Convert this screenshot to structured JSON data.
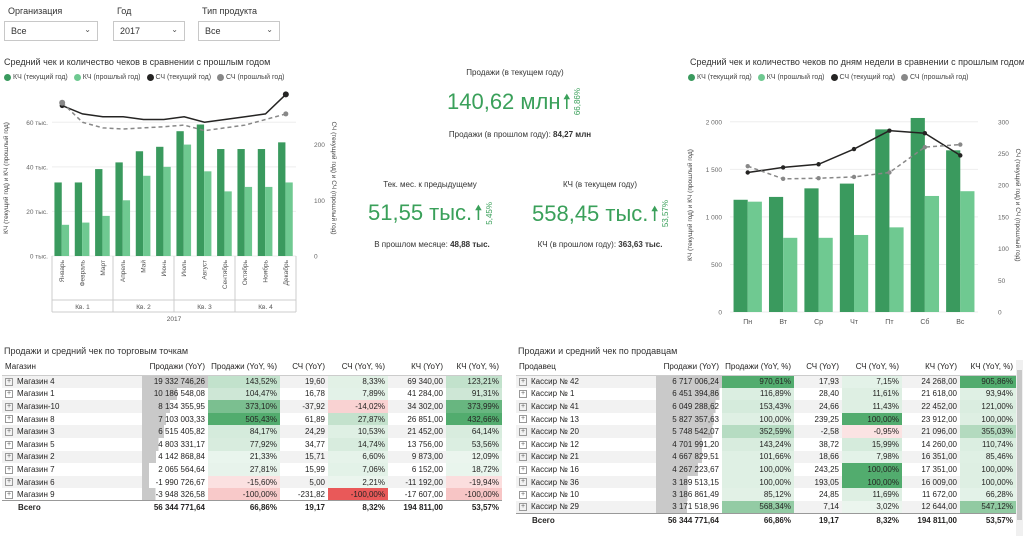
{
  "filters": [
    {
      "label": "Организация",
      "value": "Все"
    },
    {
      "label": "Год",
      "value": "2017"
    },
    {
      "label": "Тип продукта",
      "value": "Все"
    }
  ],
  "colors": {
    "kch_cur": "#3a9a5e",
    "kch_prev": "#6fc991",
    "sch_cur": "#252423",
    "sch_prev": "#888888",
    "accent": "#3aa05a"
  },
  "chart_left": {
    "title": "Средний чек и количество чеков в сравнении с прошлым годом",
    "legend": [
      "КЧ (текущий год)",
      "КЧ (прошлый год)",
      "СЧ (текущий год)",
      "СЧ (прошлый год)"
    ],
    "ylabel_left": "КЧ (текущий год) и КЧ (прошлый год)",
    "ylabel_right": "СЧ (текущий год) и СЧ (прошлый год)",
    "yticks_left": [
      "0 тыс.",
      "20 тыс.",
      "40 тыс.",
      "60 тыс."
    ],
    "yticks_right": [
      "0",
      "100",
      "200"
    ],
    "quarters": [
      "Кв. 1",
      "Кв. 2",
      "Кв. 3",
      "Кв. 4"
    ],
    "year": "2017"
  },
  "chart_right": {
    "title": "Средний чек и количество чеков по дням недели в сравнении с прошлым годом",
    "legend": [
      "КЧ (текущий год)",
      "КЧ (прошлый год)",
      "СЧ (текущий год)",
      "СЧ (прошлый год)"
    ],
    "ylabel_left": "КЧ (текущий год) и КЧ (прошлый год)",
    "ylabel_right": "СЧ (текущий год) и СЧ (прошлый год)",
    "yticks_left": [
      "0",
      "500",
      "1 000",
      "1 500",
      "2 000"
    ],
    "yticks_right": [
      "0",
      "50",
      "100",
      "150",
      "200",
      "250",
      "300"
    ]
  },
  "chart_data": [
    {
      "type": "bar",
      "title": "Средний чек и количество чеков в сравнении с прошлым годом",
      "categories": [
        "Январь",
        "Февраль",
        "Март",
        "Апрель",
        "Май",
        "Июнь",
        "Июль",
        "Август",
        "Сентябрь",
        "Октябрь",
        "Ноябрь",
        "Декабрь"
      ],
      "ylim": [
        0,
        70000
      ],
      "y2lim": [
        0,
        280
      ],
      "series": [
        {
          "name": "КЧ (текущий год)",
          "kind": "bar",
          "values": [
            33000,
            33000,
            39000,
            42000,
            47000,
            49000,
            56000,
            59000,
            48000,
            48000,
            48000,
            51000
          ]
        },
        {
          "name": "КЧ (прошлый год)",
          "kind": "bar",
          "values": [
            14000,
            15000,
            18000,
            25000,
            36000,
            40000,
            50000,
            38000,
            29000,
            31000,
            31000,
            33000
          ]
        },
        {
          "name": "СЧ (текущий год)",
          "kind": "line",
          "values": [
            270,
            255,
            250,
            250,
            245,
            245,
            250,
            240,
            245,
            250,
            255,
            290
          ]
        },
        {
          "name": "СЧ (прошлый год)",
          "kind": "line",
          "values": [
            275,
            240,
            230,
            228,
            230,
            232,
            235,
            225,
            230,
            235,
            245,
            255
          ]
        }
      ]
    },
    {
      "type": "bar",
      "title": "Средний чек и количество чеков по дням недели в сравнении с прошлым годом",
      "categories": [
        "Пн",
        "Вт",
        "Ср",
        "Чт",
        "Пт",
        "Сб",
        "Вс"
      ],
      "ylim": [
        0,
        2250
      ],
      "y2lim": [
        0,
        337.5
      ],
      "series": [
        {
          "name": "КЧ (текущий год)",
          "kind": "bar",
          "values": [
            1180,
            1210,
            1300,
            1350,
            1920,
            2040,
            1700
          ]
        },
        {
          "name": "КЧ (прошлый год)",
          "kind": "bar",
          "values": [
            1160,
            780,
            780,
            810,
            890,
            1220,
            1270
          ]
        },
        {
          "name": "СЧ (текущий год)",
          "kind": "line",
          "values": [
            220,
            228,
            233,
            257,
            286,
            282,
            247
          ]
        },
        {
          "name": "СЧ (прошлый год)",
          "kind": "line",
          "values": [
            230,
            210,
            211,
            213,
            220,
            260,
            264
          ]
        }
      ]
    }
  ],
  "kpi": {
    "sales": {
      "title": "Продажи (в текущем году)",
      "value": "140,62 млн",
      "pct": "66,86%",
      "prev_label": "Продажи (в прошлом году):",
      "prev_value": "84,27 млн"
    },
    "month": {
      "title": "Тек. мес. к предыдущему",
      "value": "51,55 тыс.",
      "pct": "5,45%",
      "prev_label": "В прошлом месяце:",
      "prev_value": "48,88 тыс."
    },
    "kch": {
      "title": "КЧ (в текущем году)",
      "value": "558,45 тыс.",
      "pct": "53,57%",
      "prev_label": "КЧ (в прошлом году):",
      "prev_value": "363,63 тыс."
    }
  },
  "table_stores": {
    "title": "Продажи и средний чек по торговым точкам",
    "headers": [
      "Магазин",
      "Продажи (YoY)",
      "Продажи (YoY, %)",
      "СЧ (YoY)",
      "СЧ (YoY, %)",
      "КЧ (YoY)",
      "КЧ (YoY, %)"
    ],
    "rows": [
      [
        "Магазин 4",
        "19 332 746,26",
        "143,52%",
        "19,60",
        "8,33%",
        "69 340,00",
        "123,21%"
      ],
      [
        "Магазин 1",
        "10 186 548,08",
        "104,47%",
        "16,78",
        "7,89%",
        "41 284,00",
        "91,31%"
      ],
      [
        "Магазин-10",
        "8 134 355,95",
        "373,10%",
        "-37,92",
        "-14,02%",
        "34 302,00",
        "373,99%"
      ],
      [
        "Магазин 8",
        "7 103 003,33",
        "505,43%",
        "61,89",
        "27,87%",
        "26 851,00",
        "432,66%"
      ],
      [
        "Магазин 3",
        "6 515 405,82",
        "84,17%",
        "24,29",
        "10,53%",
        "21 452,00",
        "64,14%"
      ],
      [
        "Магазин 5",
        "4 803 331,17",
        "77,92%",
        "34,77",
        "14,74%",
        "13 756,00",
        "53,56%"
      ],
      [
        "Магазин 2",
        "4 142 868,84",
        "21,33%",
        "15,71",
        "6,60%",
        "9 873,00",
        "12,09%"
      ],
      [
        "Магазин 7",
        "2 065 564,64",
        "27,81%",
        "15,99",
        "7,06%",
        "6 152,00",
        "18,72%"
      ],
      [
        "Магазин 6",
        "-1 990 726,67",
        "-15,60%",
        "5,00",
        "2,21%",
        "-11 192,00",
        "-19,94%"
      ],
      [
        "Магазин 9",
        "-3 948 326,58",
        "-100,00%",
        "-231,82",
        "-100,00%",
        "-17 607,00",
        "-100,00%"
      ]
    ],
    "total": [
      "Всего",
      "56 344 771,64",
      "66,86%",
      "19,17",
      "8,32%",
      "194 811,00",
      "53,57%"
    ]
  },
  "table_sellers": {
    "title": "Продажи и средний чек по продавцам",
    "headers": [
      "Продавец",
      "Продажи (YoY)",
      "Продажи (YoY, %)",
      "СЧ (YoY)",
      "СЧ (YoY, %)",
      "КЧ (YoY)",
      "КЧ (YoY, %)"
    ],
    "rows": [
      [
        "Кассир № 42",
        "6 717 006,24",
        "970,61%",
        "17,93",
        "7,15%",
        "24 268,00",
        "905,86%"
      ],
      [
        "Кассир № 1",
        "6 451 394,86",
        "116,89%",
        "28,40",
        "11,61%",
        "21 618,00",
        "93,94%"
      ],
      [
        "Кассир № 41",
        "6 049 288,62",
        "153,43%",
        "24,66",
        "11,43%",
        "22 452,00",
        "121,00%"
      ],
      [
        "Кассир № 13",
        "5 827 357,63",
        "100,00%",
        "239,25",
        "100,00%",
        "23 912,00",
        "100,00%"
      ],
      [
        "Кассир № 20",
        "5 748 542,07",
        "352,59%",
        "-2,58",
        "-0,95%",
        "21 096,00",
        "355,03%"
      ],
      [
        "Кассир № 12",
        "4 701 991,20",
        "143,24%",
        "38,72",
        "15,99%",
        "14 260,00",
        "110,74%"
      ],
      [
        "Кассир № 21",
        "4 667 829,51",
        "101,66%",
        "18,66",
        "7,98%",
        "16 351,00",
        "85,46%"
      ],
      [
        "Кассир № 16",
        "4 267 223,67",
        "100,00%",
        "243,25",
        "100,00%",
        "17 351,00",
        "100,00%"
      ],
      [
        "Кассир № 36",
        "3 189 513,15",
        "100,00%",
        "193,05",
        "100,00%",
        "16 009,00",
        "100,00%"
      ],
      [
        "Кассир № 10",
        "3 186 861,49",
        "85,12%",
        "24,85",
        "11,69%",
        "11 672,00",
        "66,28%"
      ],
      [
        "Кассир № 29",
        "3 171 518,96",
        "568,34%",
        "7,14",
        "3,02%",
        "12 644,00",
        "547,12%"
      ]
    ],
    "total": [
      "Всего",
      "56 344 771,64",
      "66,86%",
      "19,17",
      "8,32%",
      "194 811,00",
      "53,57%"
    ]
  }
}
